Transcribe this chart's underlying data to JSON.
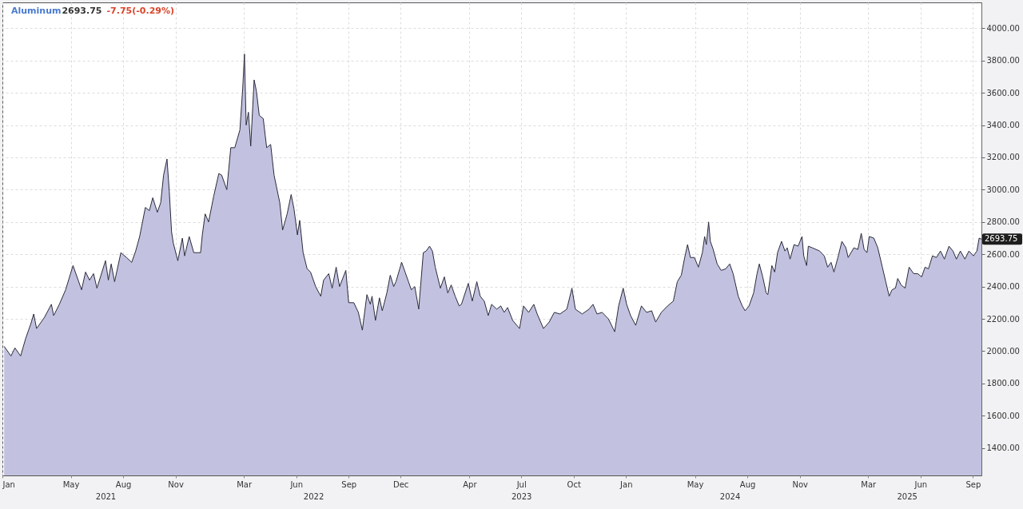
{
  "chart_data": {
    "type": "area",
    "title": "Aluminum",
    "annotations": [
      "2693.75",
      "-7.75(-0.29%)",
      {
        "text": "2693.75",
        "x": "2025-09-16",
        "y": 2693.75
      }
    ],
    "color": "#c2c2e0",
    "grid": true,
    "xlim": [
      "2021-01-01",
      "2025-09-16"
    ],
    "xticks": [
      {
        "value": "2021-01-01",
        "label": "Jan"
      },
      {
        "value": "2021-05-01",
        "label": "May"
      },
      {
        "value": "2021-08-01",
        "label": "Aug"
      },
      {
        "value": "2021-11-01",
        "label": "Nov"
      },
      {
        "value": "2022-03-01",
        "label": "Mar"
      },
      {
        "value": "2022-06-01",
        "label": "Jun"
      },
      {
        "value": "2022-09-01",
        "label": "Sep"
      },
      {
        "value": "2022-12-01",
        "label": "Dec"
      },
      {
        "value": "2023-04-01",
        "label": "Apr"
      },
      {
        "value": "2023-07-01",
        "label": "Jul"
      },
      {
        "value": "2023-10-01",
        "label": "Oct"
      },
      {
        "value": "2024-01-01",
        "label": "Jan"
      },
      {
        "value": "2024-05-01",
        "label": "May"
      },
      {
        "value": "2024-08-01",
        "label": "Aug"
      },
      {
        "value": "2024-11-01",
        "label": "Nov"
      },
      {
        "value": "2025-03-01",
        "label": "Mar"
      },
      {
        "value": "2025-06-01",
        "label": "Jun"
      },
      {
        "value": "2025-09-01",
        "label": "Sep"
      }
    ],
    "x2lim": [
      "2021-01-01",
      "2025-09-16"
    ],
    "x2ticks": [
      {
        "value": "2021-07-01",
        "label": "2021"
      },
      {
        "value": "2022-07-01",
        "label": "2022"
      },
      {
        "value": "2023-07-01",
        "label": "2023"
      },
      {
        "value": "2024-07-01",
        "label": "2024"
      },
      {
        "value": "2025-05-08",
        "label": "2025"
      }
    ],
    "ylim": [
      1230,
      4160
    ],
    "yticks": [
      {
        "value": 1400,
        "label": "1400.00"
      },
      {
        "value": 1600,
        "label": "1600.00"
      },
      {
        "value": 1800,
        "label": "1800.00"
      },
      {
        "value": 2000,
        "label": "2000.00"
      },
      {
        "value": 2200,
        "label": "2200.00"
      },
      {
        "value": 2400,
        "label": "2400.00"
      },
      {
        "value": 2600,
        "label": "2600.00"
      },
      {
        "value": 2800,
        "label": "2800.00"
      },
      {
        "value": 3000,
        "label": "3000.00"
      },
      {
        "value": 3200,
        "label": "3200.00"
      },
      {
        "value": 3400,
        "label": "3400.00"
      },
      {
        "value": 3600,
        "label": "3600.00"
      },
      {
        "value": 3800,
        "label": "3800.00"
      },
      {
        "value": 4000,
        "label": "4000.00"
      }
    ],
    "x": [
      "2021-01-04",
      "2021-01-16",
      "2021-01-23",
      "2021-02-02",
      "2021-02-11",
      "2021-02-20",
      "2021-02-25",
      "2021-03-02",
      "2021-03-16",
      "2021-03-28",
      "2021-04-01",
      "2021-04-11",
      "2021-04-22",
      "2021-05-05",
      "2021-05-20",
      "2021-05-27",
      "2021-06-03",
      "2021-06-10",
      "2021-06-16",
      "2021-07-01",
      "2021-07-06",
      "2021-07-11",
      "2021-07-17",
      "2021-07-28",
      "2021-08-07",
      "2021-08-16",
      "2021-08-23",
      "2021-08-30",
      "2021-09-09",
      "2021-09-16",
      "2021-09-22",
      "2021-09-30",
      "2021-10-06",
      "2021-10-11",
      "2021-10-17",
      "2021-10-21",
      "2021-10-25",
      "2021-10-28",
      "2021-11-05",
      "2021-11-13",
      "2021-11-17",
      "2021-11-25",
      "2021-12-03",
      "2021-12-15",
      "2021-12-18",
      "2021-12-23",
      "2021-12-29",
      "2022-01-07",
      "2022-01-16",
      "2022-01-21",
      "2022-01-30",
      "2022-02-06",
      "2022-02-13",
      "2022-02-22",
      "2022-02-27",
      "2022-03-02",
      "2022-03-05",
      "2022-03-09",
      "2022-03-13",
      "2022-03-19",
      "2022-03-23",
      "2022-03-28",
      "2022-04-04",
      "2022-04-10",
      "2022-04-17",
      "2022-04-23",
      "2022-05-03",
      "2022-05-08",
      "2022-05-16",
      "2022-05-23",
      "2022-05-28",
      "2022-06-03",
      "2022-06-07",
      "2022-06-13",
      "2022-06-20",
      "2022-06-26",
      "2022-07-05",
      "2022-07-14",
      "2022-07-19",
      "2022-07-28",
      "2022-08-03",
      "2022-08-10",
      "2022-08-16",
      "2022-08-27",
      "2022-09-01",
      "2022-09-10",
      "2022-09-18",
      "2022-09-25",
      "2022-10-03",
      "2022-10-09",
      "2022-10-12",
      "2022-10-18",
      "2022-10-25",
      "2022-10-30",
      "2022-11-07",
      "2022-11-13",
      "2022-11-19",
      "2022-11-23",
      "2022-12-03",
      "2022-12-09",
      "2022-12-15",
      "2022-12-20",
      "2022-12-26",
      "2023-01-02",
      "2023-01-10",
      "2023-01-15",
      "2023-01-21",
      "2023-01-26",
      "2023-01-31",
      "2023-02-09",
      "2023-02-16",
      "2023-02-22",
      "2023-02-28",
      "2023-03-07",
      "2023-03-14",
      "2023-03-18",
      "2023-03-30",
      "2023-04-06",
      "2023-04-14",
      "2023-04-20",
      "2023-04-27",
      "2023-05-04",
      "2023-05-10",
      "2023-05-19",
      "2023-05-26",
      "2023-06-01",
      "2023-06-07",
      "2023-06-16",
      "2023-06-28",
      "2023-07-05",
      "2023-07-14",
      "2023-07-23",
      "2023-07-29",
      "2023-08-09",
      "2023-08-19",
      "2023-08-28",
      "2023-09-07",
      "2023-09-19",
      "2023-09-28",
      "2023-10-04",
      "2023-10-16",
      "2023-10-28",
      "2023-11-04",
      "2023-11-11",
      "2023-11-20",
      "2023-12-01",
      "2023-12-12",
      "2023-12-19",
      "2023-12-27",
      "2024-01-02",
      "2024-01-09",
      "2024-01-18",
      "2024-01-28",
      "2024-02-06",
      "2024-02-15",
      "2024-02-22",
      "2024-03-03",
      "2024-03-14",
      "2024-03-24",
      "2024-03-31",
      "2024-04-07",
      "2024-04-13",
      "2024-04-18",
      "2024-04-23",
      "2024-04-30",
      "2024-05-07",
      "2024-05-14",
      "2024-05-18",
      "2024-05-21",
      "2024-05-25",
      "2024-05-28",
      "2024-06-02",
      "2024-06-09",
      "2024-06-16",
      "2024-06-24",
      "2024-07-01",
      "2024-07-07",
      "2024-07-16",
      "2024-07-23",
      "2024-07-28",
      "2024-08-04",
      "2024-08-12",
      "2024-08-18",
      "2024-08-22",
      "2024-08-28",
      "2024-09-03",
      "2024-09-06",
      "2024-09-13",
      "2024-09-18",
      "2024-09-23",
      "2024-09-30",
      "2024-10-06",
      "2024-10-10",
      "2024-10-15",
      "2024-10-22",
      "2024-10-29",
      "2024-11-05",
      "2024-11-08",
      "2024-11-13",
      "2024-11-16",
      "2024-11-23",
      "2024-12-06",
      "2024-12-14",
      "2024-12-20",
      "2024-12-26",
      "2024-12-31",
      "2025-01-07",
      "2025-01-14",
      "2025-01-21",
      "2025-01-25",
      "2025-02-04",
      "2025-02-11",
      "2025-02-17",
      "2025-02-22",
      "2025-02-27",
      "2025-03-03",
      "2025-03-11",
      "2025-03-18",
      "2025-03-26",
      "2025-04-01",
      "2025-04-07",
      "2025-04-12",
      "2025-04-18",
      "2025-04-22",
      "2025-04-28",
      "2025-05-05",
      "2025-05-12",
      "2025-05-20",
      "2025-05-27",
      "2025-06-03",
      "2025-06-09",
      "2025-06-15",
      "2025-06-22",
      "2025-06-29",
      "2025-07-06",
      "2025-07-13",
      "2025-07-21",
      "2025-07-28",
      "2025-08-03",
      "2025-08-10",
      "2025-08-18",
      "2025-08-25",
      "2025-09-02",
      "2025-09-08",
      "2025-09-12",
      "2025-09-16"
    ],
    "values": [
      2030,
      1970,
      2020,
      1970,
      2080,
      2170,
      2230,
      2140,
      2210,
      2290,
      2220,
      2290,
      2380,
      2530,
      2380,
      2490,
      2440,
      2480,
      2390,
      2560,
      2440,
      2540,
      2430,
      2610,
      2580,
      2550,
      2620,
      2710,
      2890,
      2870,
      2950,
      2860,
      2920,
      3090,
      3190,
      2990,
      2740,
      2670,
      2560,
      2700,
      2590,
      2710,
      2610,
      2610,
      2720,
      2850,
      2800,
      2960,
      3100,
      3090,
      3000,
      3260,
      3260,
      3370,
      3630,
      3840,
      3400,
      3480,
      3270,
      3680,
      3610,
      3460,
      3440,
      3260,
      3280,
      3090,
      2920,
      2750,
      2850,
      2970,
      2880,
      2720,
      2810,
      2610,
      2510,
      2490,
      2400,
      2340,
      2440,
      2480,
      2390,
      2520,
      2400,
      2500,
      2300,
      2300,
      2240,
      2130,
      2350,
      2290,
      2340,
      2190,
      2330,
      2250,
      2360,
      2470,
      2400,
      2430,
      2550,
      2490,
      2430,
      2380,
      2400,
      2260,
      2610,
      2620,
      2650,
      2620,
      2520,
      2390,
      2460,
      2360,
      2410,
      2340,
      2280,
      2290,
      2420,
      2310,
      2430,
      2340,
      2310,
      2220,
      2290,
      2260,
      2280,
      2240,
      2270,
      2190,
      2140,
      2280,
      2240,
      2290,
      2230,
      2140,
      2180,
      2240,
      2230,
      2260,
      2390,
      2260,
      2230,
      2260,
      2290,
      2230,
      2240,
      2200,
      2120,
      2280,
      2390,
      2290,
      2220,
      2160,
      2280,
      2240,
      2250,
      2180,
      2240,
      2280,
      2310,
      2430,
      2470,
      2580,
      2660,
      2580,
      2580,
      2520,
      2610,
      2710,
      2660,
      2800,
      2680,
      2630,
      2540,
      2500,
      2510,
      2540,
      2480,
      2340,
      2280,
      2250,
      2280,
      2360,
      2480,
      2540,
      2460,
      2360,
      2350,
      2530,
      2490,
      2610,
      2680,
      2620,
      2640,
      2570,
      2660,
      2650,
      2710,
      2590,
      2530,
      2650,
      2640,
      2620,
      2590,
      2520,
      2550,
      2490,
      2580,
      2680,
      2640,
      2580,
      2640,
      2630,
      2730,
      2630,
      2610,
      2710,
      2700,
      2640,
      2520,
      2430,
      2340,
      2380,
      2390,
      2450,
      2410,
      2390,
      2520,
      2480,
      2480,
      2460,
      2520,
      2510,
      2590,
      2580,
      2620,
      2570,
      2650,
      2620,
      2570,
      2620,
      2570,
      2620,
      2590,
      2620,
      2700,
      2693.75
    ]
  }
}
